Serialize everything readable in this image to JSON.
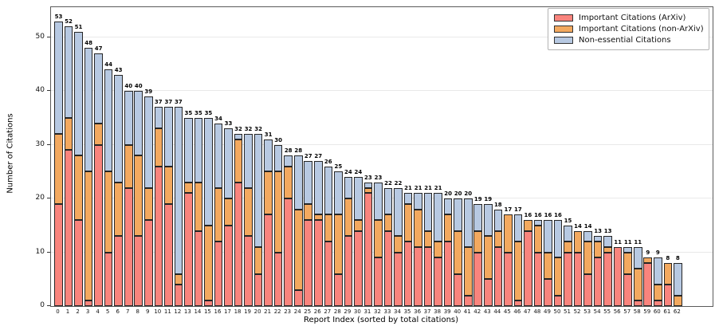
{
  "figure": {
    "ylabel": "Number of Citations",
    "xlabel": "Report Index (sorted by total citations)"
  },
  "legend": {
    "position": "upper right",
    "items": [
      {
        "name": "important-citations-arxiv",
        "label": "Important Citations (ArXiv)",
        "color": "#f9847d"
      },
      {
        "name": "important-citations-non-arxiv",
        "label": "Important Citations (non-ArXiv)",
        "color": "#f3a95f"
      },
      {
        "name": "non-essential-citations",
        "label": "Non-essential Citations",
        "color": "#b7c9e2"
      }
    ]
  },
  "chart_data": {
    "type": "bar",
    "stacked": true,
    "title": "",
    "xlabel": "Report Index (sorted by total citations)",
    "ylabel": "Number of Citations",
    "x": [
      0,
      1,
      2,
      3,
      4,
      5,
      6,
      7,
      8,
      9,
      10,
      11,
      12,
      13,
      14,
      15,
      16,
      17,
      18,
      19,
      20,
      21,
      22,
      23,
      24,
      25,
      26,
      27,
      28,
      29,
      30,
      31,
      32,
      33,
      34,
      35,
      36,
      37,
      38,
      39,
      40,
      41,
      42,
      43,
      44,
      45,
      46,
      47,
      48,
      49,
      50,
      51,
      52,
      53,
      54,
      55,
      56,
      57,
      58,
      59,
      60,
      61,
      62
    ],
    "series": [
      {
        "name": "Important Citations (ArXiv)",
        "color": "#f9847d",
        "values": [
          19,
          29,
          16,
          1,
          30,
          10,
          13,
          22,
          13,
          16,
          26,
          19,
          4,
          21,
          14,
          1,
          12,
          15,
          23,
          13,
          6,
          17,
          10,
          20,
          3,
          16,
          16,
          12,
          6,
          13,
          14,
          21,
          9,
          14,
          10,
          12,
          11,
          11,
          9,
          12,
          6,
          2,
          10,
          5,
          11,
          10,
          1,
          14,
          10,
          5,
          2,
          10,
          10,
          6,
          9,
          10,
          11,
          6,
          1,
          8,
          1,
          4,
          0
        ]
      },
      {
        "name": "Important Citations (non-ArXiv)",
        "color": "#f3a95f",
        "values": [
          13,
          6,
          12,
          24,
          4,
          15,
          10,
          8,
          15,
          6,
          7,
          7,
          2,
          2,
          9,
          14,
          10,
          5,
          8,
          9,
          5,
          8,
          15,
          6,
          15,
          3,
          1,
          5,
          11,
          7,
          2,
          1,
          7,
          3,
          3,
          7,
          7,
          3,
          3,
          5,
          8,
          9,
          4,
          8,
          3,
          7,
          11,
          2,
          5,
          5,
          7,
          2,
          4,
          6,
          3,
          1,
          0,
          4,
          6,
          1,
          3,
          4,
          2
        ]
      },
      {
        "name": "Non-essential Citations",
        "color": "#b7c9e2",
        "values": [
          21,
          17,
          23,
          23,
          13,
          19,
          20,
          10,
          12,
          17,
          4,
          11,
          31,
          12,
          12,
          20,
          12,
          13,
          1,
          10,
          21,
          6,
          5,
          2,
          10,
          8,
          10,
          9,
          8,
          4,
          8,
          1,
          7,
          5,
          9,
          2,
          3,
          7,
          9,
          3,
          6,
          9,
          5,
          6,
          4,
          0,
          5,
          0,
          1,
          6,
          7,
          3,
          0,
          2,
          1,
          2,
          0,
          1,
          4,
          0,
          5,
          0,
          6
        ]
      }
    ],
    "totals": [
      53,
      52,
      51,
      48,
      47,
      44,
      43,
      40,
      40,
      39,
      37,
      37,
      37,
      35,
      35,
      35,
      34,
      33,
      32,
      32,
      32,
      31,
      30,
      28,
      28,
      27,
      27,
      26,
      25,
      24,
      24,
      23,
      23,
      22,
      22,
      21,
      21,
      21,
      21,
      20,
      20,
      20,
      19,
      19,
      18,
      17,
      17,
      16,
      16,
      16,
      16,
      15,
      14,
      14,
      13,
      13,
      11,
      11,
      11,
      9,
      9,
      8,
      8
    ],
    "yticks": [
      0,
      10,
      20,
      30,
      40,
      50
    ],
    "ylim": [
      0,
      55.6
    ],
    "grid": true,
    "bar_edge_color": "#262626",
    "legend_position": "upper right"
  }
}
